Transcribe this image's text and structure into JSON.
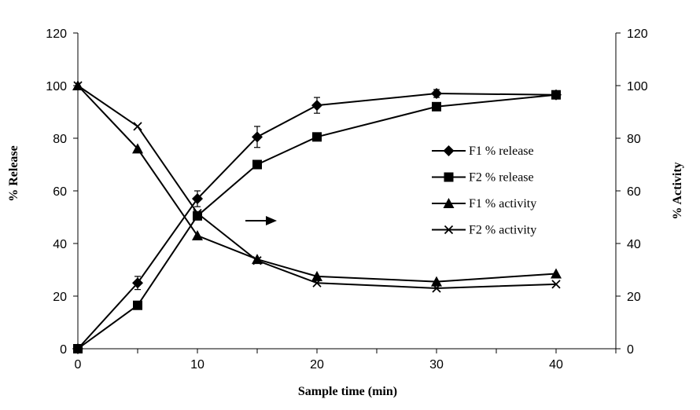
{
  "chart_data": {
    "type": "line",
    "x": [
      0,
      5,
      10,
      15,
      20,
      30,
      40
    ],
    "xlabel": "Sample time (min)",
    "ylabel": "% Release",
    "y2label": "% Activity",
    "xlim": [
      0,
      45
    ],
    "ylim": [
      0,
      120
    ],
    "y2lim": [
      0,
      120
    ],
    "xticks": [
      "0",
      "10",
      "20",
      "30",
      "40"
    ],
    "yticks": [
      "0",
      "20",
      "40",
      "60",
      "80",
      "100",
      "120"
    ],
    "y2ticks": [
      "0",
      "20",
      "40",
      "60",
      "80",
      "100",
      "120"
    ],
    "grid": false,
    "legend_position": "right",
    "annotation": "arrow pointing right toward the % Activity axis",
    "series": [
      {
        "name": "F1 % release",
        "marker": "diamond",
        "axis": "left",
        "values": [
          0,
          25,
          57,
          80.5,
          92.5,
          97,
          96.5
        ],
        "errors": [
          0,
          2.5,
          3,
          4,
          3,
          1.5,
          1.5
        ]
      },
      {
        "name": "F2 % release",
        "marker": "square",
        "axis": "left",
        "values": [
          0,
          16.5,
          50.5,
          70,
          80.5,
          92,
          96.5
        ]
      },
      {
        "name": "F1 % activity",
        "marker": "triangle",
        "axis": "right",
        "values": [
          100,
          76,
          43,
          34,
          27.5,
          25.5,
          28.5
        ]
      },
      {
        "name": "F2 % activity",
        "marker": "cross",
        "axis": "right",
        "values": [
          100,
          84.5,
          51.5,
          33.5,
          25,
          23,
          24.5
        ]
      }
    ]
  }
}
